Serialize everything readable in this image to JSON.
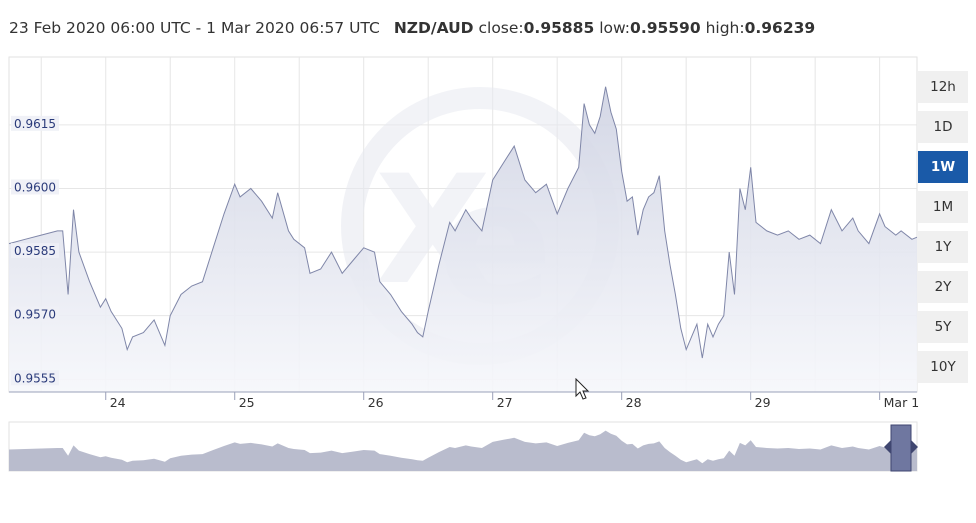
{
  "header": {
    "range_text": "23 Feb 2020 06:00 UTC - 1 Mar 2020 06:57 UTC",
    "pair": "NZD/AUD",
    "close_label": "close:",
    "close_value": "0.95885",
    "low_label": "low:",
    "low_value": "0.95590",
    "high_label": "high:",
    "high_value": "0.96239"
  },
  "range_buttons": [
    {
      "label": "12h",
      "active": false
    },
    {
      "label": "1D",
      "active": false
    },
    {
      "label": "1W",
      "active": true
    },
    {
      "label": "1M",
      "active": false
    },
    {
      "label": "1Y",
      "active": false
    },
    {
      "label": "2Y",
      "active": false
    },
    {
      "label": "5Y",
      "active": false
    },
    {
      "label": "10Y",
      "active": false
    }
  ],
  "colors": {
    "line": "#7f86a8",
    "fill": "#dcdfe9",
    "active_button": "#1a5aa8",
    "label_text": "#2a3a7a",
    "grid": "#e6e6e6",
    "navigator_fill": "#b9bccd"
  },
  "chart_data": {
    "type": "area",
    "title": "",
    "xlabel": "",
    "ylabel": "",
    "x_ticks": [
      "24",
      "25",
      "26",
      "27",
      "28",
      "29",
      "Mar 1"
    ],
    "y_ticks": [
      "0.9615",
      "0.9600",
      "0.9585",
      "0.9570",
      "0.9555"
    ],
    "ylim": [
      0.9552,
      0.9631
    ],
    "xlim": [
      "2020-02-23T06:00",
      "2020-03-01T06:57"
    ],
    "grid": true,
    "series": [
      {
        "name": "NZD/AUD",
        "points": [
          [
            "2020-02-23T06:00",
            0.9587
          ],
          [
            "2020-02-23T09:00",
            0.9588
          ],
          [
            "2020-02-23T12:00",
            0.9589
          ],
          [
            "2020-02-23T15:00",
            0.959
          ],
          [
            "2020-02-23T16:00",
            0.959
          ],
          [
            "2020-02-23T17:00",
            0.9575
          ],
          [
            "2020-02-23T18:00",
            0.9595
          ],
          [
            "2020-02-23T19:00",
            0.9585
          ],
          [
            "2020-02-23T21:00",
            0.9578
          ],
          [
            "2020-02-23T23:00",
            0.9572
          ],
          [
            "2020-02-24T00:00",
            0.9574
          ],
          [
            "2020-02-24T01:00",
            0.9571
          ],
          [
            "2020-02-24T03:00",
            0.9567
          ],
          [
            "2020-02-24T04:00",
            0.9562
          ],
          [
            "2020-02-24T05:00",
            0.9565
          ],
          [
            "2020-02-24T07:00",
            0.9566
          ],
          [
            "2020-02-24T09:00",
            0.9569
          ],
          [
            "2020-02-24T11:00",
            0.9563
          ],
          [
            "2020-02-24T12:00",
            0.957
          ],
          [
            "2020-02-24T14:00",
            0.9575
          ],
          [
            "2020-02-24T16:00",
            0.9577
          ],
          [
            "2020-02-24T18:00",
            0.9578
          ],
          [
            "2020-02-24T20:00",
            0.9586
          ],
          [
            "2020-02-24T22:00",
            0.9594
          ],
          [
            "2020-02-25T00:00",
            0.9601
          ],
          [
            "2020-02-25T01:00",
            0.9598
          ],
          [
            "2020-02-25T03:00",
            0.96
          ],
          [
            "2020-02-25T05:00",
            0.9597
          ],
          [
            "2020-02-25T07:00",
            0.9593
          ],
          [
            "2020-02-25T08:00",
            0.9599
          ],
          [
            "2020-02-25T10:00",
            0.959
          ],
          [
            "2020-02-25T11:00",
            0.9588
          ],
          [
            "2020-02-25T13:00",
            0.9586
          ],
          [
            "2020-02-25T14:00",
            0.958
          ],
          [
            "2020-02-25T16:00",
            0.9581
          ],
          [
            "2020-02-25T18:00",
            0.9585
          ],
          [
            "2020-02-25T20:00",
            0.958
          ],
          [
            "2020-02-25T22:00",
            0.9583
          ],
          [
            "2020-02-26T00:00",
            0.9586
          ],
          [
            "2020-02-26T02:00",
            0.9585
          ],
          [
            "2020-02-26T03:00",
            0.9578
          ],
          [
            "2020-02-26T05:00",
            0.9575
          ],
          [
            "2020-02-26T07:00",
            0.9571
          ],
          [
            "2020-02-26T09:00",
            0.9568
          ],
          [
            "2020-02-26T10:00",
            0.9566
          ],
          [
            "2020-02-26T11:00",
            0.9565
          ],
          [
            "2020-02-26T12:00",
            0.9571
          ],
          [
            "2020-02-26T14:00",
            0.9582
          ],
          [
            "2020-02-26T16:00",
            0.9592
          ],
          [
            "2020-02-26T17:00",
            0.959
          ],
          [
            "2020-02-26T19:00",
            0.9595
          ],
          [
            "2020-02-26T20:00",
            0.9593
          ],
          [
            "2020-02-26T22:00",
            0.959
          ],
          [
            "2020-02-27T00:00",
            0.9602
          ],
          [
            "2020-02-27T02:00",
            0.9606
          ],
          [
            "2020-02-27T04:00",
            0.961
          ],
          [
            "2020-02-27T06:00",
            0.9602
          ],
          [
            "2020-02-27T08:00",
            0.9599
          ],
          [
            "2020-02-27T10:00",
            0.9601
          ],
          [
            "2020-02-27T12:00",
            0.9594
          ],
          [
            "2020-02-27T14:00",
            0.96
          ],
          [
            "2020-02-27T16:00",
            0.9605
          ],
          [
            "2020-02-27T17:00",
            0.962
          ],
          [
            "2020-02-27T18:00",
            0.9615
          ],
          [
            "2020-02-27T19:00",
            0.9613
          ],
          [
            "2020-02-27T20:00",
            0.9617
          ],
          [
            "2020-02-27T21:00",
            0.9624
          ],
          [
            "2020-02-27T22:00",
            0.9618
          ],
          [
            "2020-02-27T23:00",
            0.9614
          ],
          [
            "2020-02-28T00:00",
            0.9604
          ],
          [
            "2020-02-28T01:00",
            0.9597
          ],
          [
            "2020-02-28T02:00",
            0.9598
          ],
          [
            "2020-02-28T03:00",
            0.9589
          ],
          [
            "2020-02-28T04:00",
            0.9595
          ],
          [
            "2020-02-28T05:00",
            0.9598
          ],
          [
            "2020-02-28T06:00",
            0.9599
          ],
          [
            "2020-02-28T07:00",
            0.9603
          ],
          [
            "2020-02-28T08:00",
            0.959
          ],
          [
            "2020-02-28T09:00",
            0.9582
          ],
          [
            "2020-02-28T10:00",
            0.9575
          ],
          [
            "2020-02-28T11:00",
            0.9567
          ],
          [
            "2020-02-28T12:00",
            0.9562
          ],
          [
            "2020-02-28T13:00",
            0.9565
          ],
          [
            "2020-02-28T14:00",
            0.9568
          ],
          [
            "2020-02-28T15:00",
            0.956
          ],
          [
            "2020-02-28T16:00",
            0.9568
          ],
          [
            "2020-02-28T17:00",
            0.9565
          ],
          [
            "2020-02-28T18:00",
            0.9568
          ],
          [
            "2020-02-28T19:00",
            0.957
          ],
          [
            "2020-02-28T20:00",
            0.9585
          ],
          [
            "2020-02-28T21:00",
            0.9575
          ],
          [
            "2020-02-28T22:00",
            0.96
          ],
          [
            "2020-02-28T23:00",
            0.9595
          ],
          [
            "2020-02-29T00:00",
            0.9605
          ],
          [
            "2020-02-29T01:00",
            0.9592
          ],
          [
            "2020-02-29T03:00",
            0.959
          ],
          [
            "2020-02-29T05:00",
            0.9589
          ],
          [
            "2020-02-29T07:00",
            0.959
          ],
          [
            "2020-02-29T09:00",
            0.9588
          ],
          [
            "2020-02-29T11:00",
            0.9589
          ],
          [
            "2020-02-29T13:00",
            0.9587
          ],
          [
            "2020-02-29T15:00",
            0.9595
          ],
          [
            "2020-02-29T17:00",
            0.959
          ],
          [
            "2020-02-29T19:00",
            0.9593
          ],
          [
            "2020-02-29T20:00",
            0.959
          ],
          [
            "2020-02-29T22:00",
            0.9587
          ],
          [
            "2020-03-01T00:00",
            0.9594
          ],
          [
            "2020-03-01T01:00",
            0.9591
          ],
          [
            "2020-03-01T03:00",
            0.9589
          ],
          [
            "2020-03-01T04:00",
            0.959
          ],
          [
            "2020-03-01T06:00",
            0.9588
          ],
          [
            "2020-03-01T06:57",
            0.95885
          ]
        ]
      }
    ]
  }
}
